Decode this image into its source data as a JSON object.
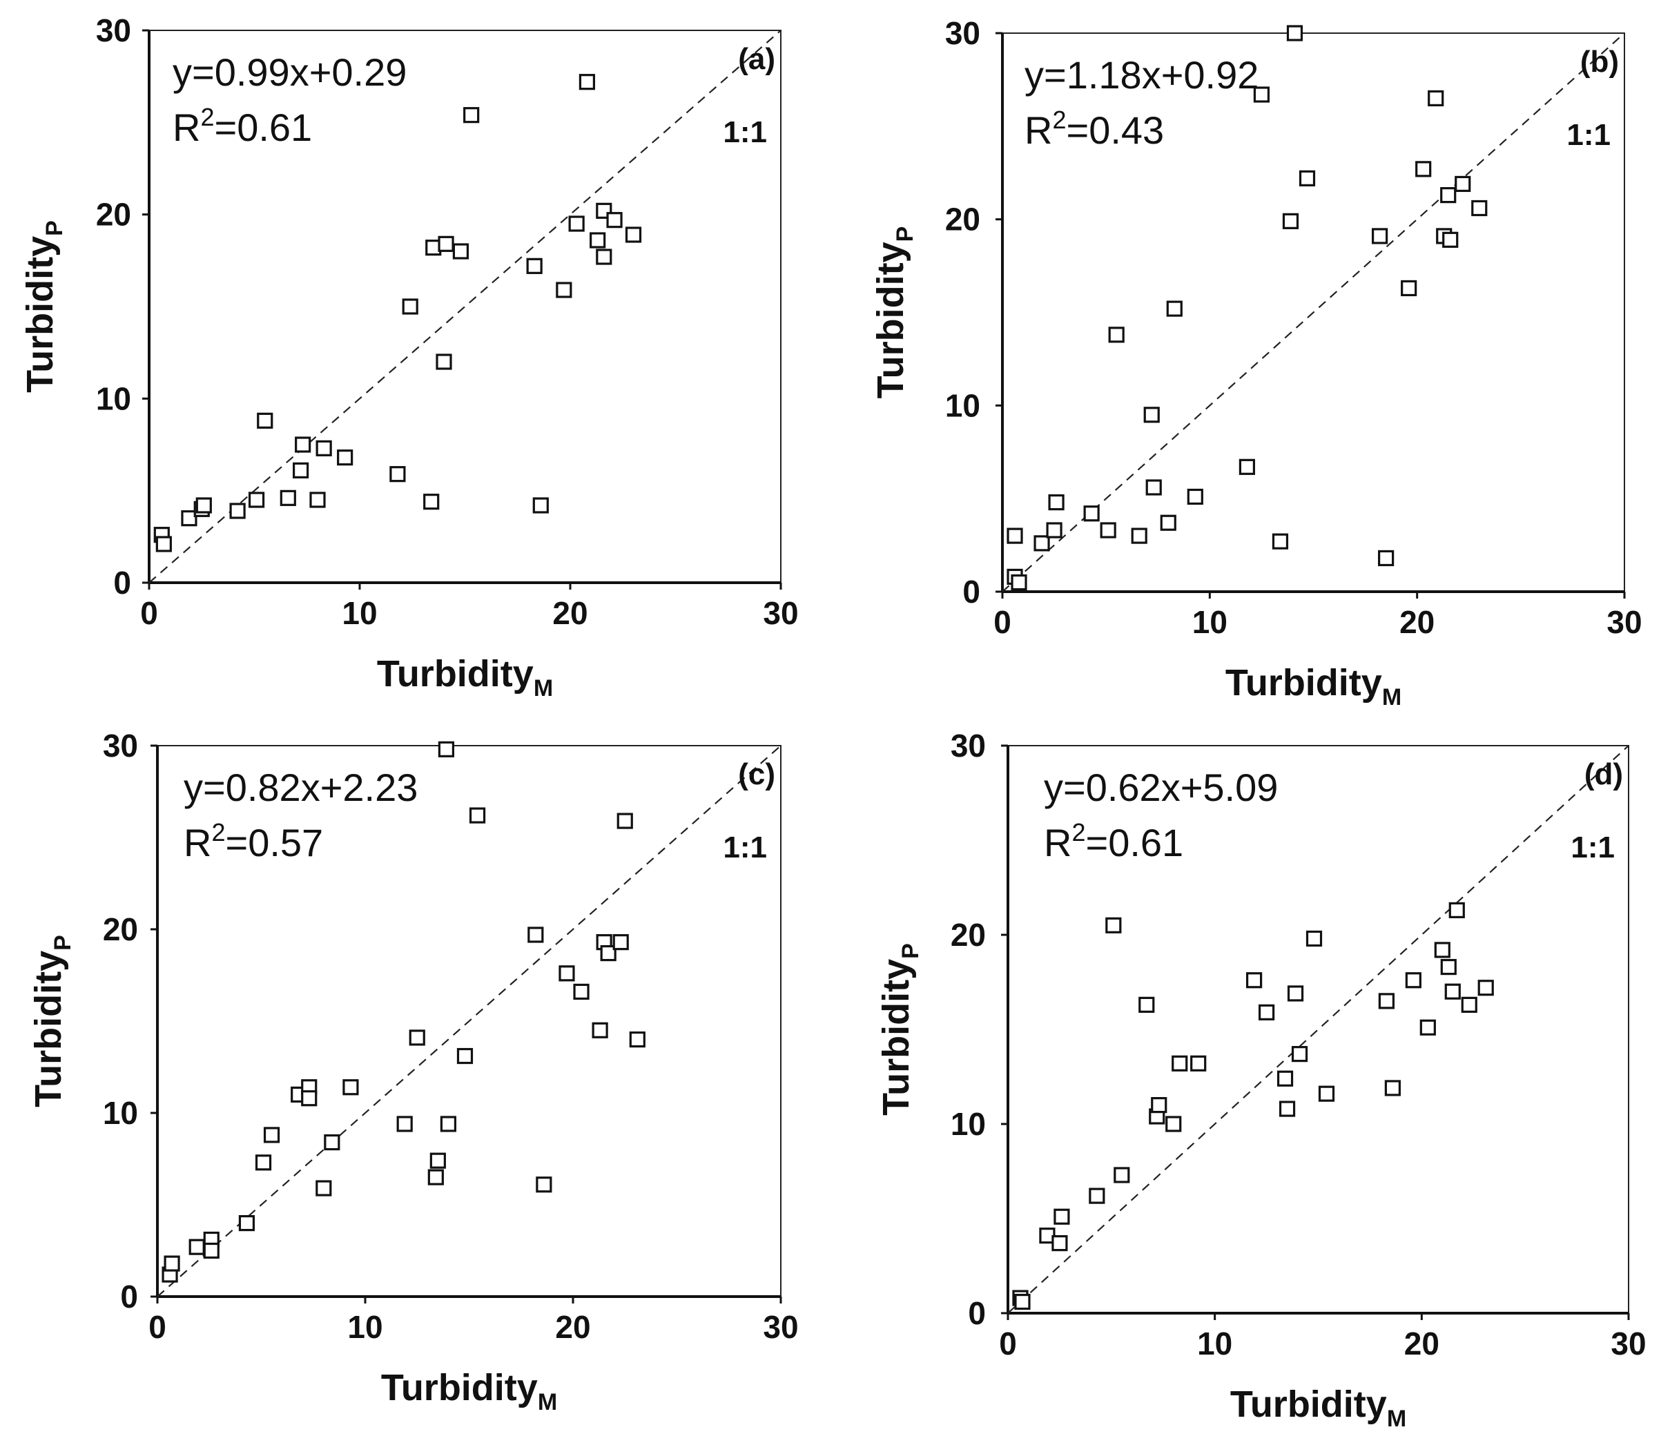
{
  "figure": {
    "colors": {
      "axis": "#111111",
      "marker_stroke": "#111111",
      "background": "#ffffff"
    }
  },
  "chart_data": [
    {
      "type": "scatter",
      "panel": "(a)",
      "equation": "y=0.99x+0.29",
      "r2_prefix": "R",
      "r2_sup": "2",
      "r2_value": "=0.61",
      "ref_line_label": "1:1",
      "xlabel": "Turbidity",
      "xlabel_sub": "M",
      "ylabel": "Turbidity",
      "ylabel_sub": "P",
      "xlim": [
        0,
        30
      ],
      "ylim": [
        0,
        30
      ],
      "xticks": [
        0,
        10,
        20,
        30
      ],
      "yticks": [
        0,
        10,
        20,
        30
      ],
      "marker": "open-square",
      "points": [
        [
          0.6,
          2.6
        ],
        [
          0.7,
          2.1
        ],
        [
          1.9,
          3.5
        ],
        [
          2.5,
          4.0
        ],
        [
          2.6,
          4.2
        ],
        [
          4.2,
          3.9
        ],
        [
          5.1,
          4.5
        ],
        [
          5.5,
          8.8
        ],
        [
          6.6,
          4.6
        ],
        [
          7.2,
          6.1
        ],
        [
          7.3,
          7.5
        ],
        [
          8.0,
          4.5
        ],
        [
          8.3,
          7.3
        ],
        [
          9.3,
          6.8
        ],
        [
          11.8,
          5.9
        ],
        [
          12.4,
          15.0
        ],
        [
          13.4,
          4.4
        ],
        [
          13.5,
          18.2
        ],
        [
          14.0,
          12.0
        ],
        [
          14.1,
          18.4
        ],
        [
          14.8,
          18.0
        ],
        [
          15.3,
          25.4
        ],
        [
          18.3,
          17.2
        ],
        [
          18.6,
          4.2
        ],
        [
          19.7,
          15.9
        ],
        [
          20.3,
          19.5
        ],
        [
          20.8,
          27.2
        ],
        [
          21.3,
          18.6
        ],
        [
          21.6,
          20.2
        ],
        [
          21.6,
          17.7
        ],
        [
          22.1,
          19.7
        ],
        [
          23.0,
          18.9
        ]
      ]
    },
    {
      "type": "scatter",
      "panel": "(b)",
      "equation": "y=1.18x+0.92",
      "r2_prefix": "R",
      "r2_sup": "2",
      "r2_value": "=0.43",
      "ref_line_label": "1:1",
      "xlabel": "Turbidity",
      "xlabel_sub": "M",
      "ylabel": "Turbidity",
      "ylabel_sub": "P",
      "xlim": [
        0,
        30
      ],
      "ylim": [
        0,
        30
      ],
      "xticks": [
        0,
        10,
        20,
        30
      ],
      "yticks": [
        0,
        10,
        20,
        30
      ],
      "marker": "open-square",
      "points": [
        [
          0.6,
          3.0
        ],
        [
          0.6,
          0.8
        ],
        [
          0.8,
          0.5
        ],
        [
          1.9,
          2.6
        ],
        [
          2.5,
          3.3
        ],
        [
          2.6,
          4.8
        ],
        [
          4.3,
          4.2
        ],
        [
          5.1,
          3.3
        ],
        [
          5.5,
          13.8
        ],
        [
          6.6,
          3.0
        ],
        [
          7.2,
          9.5
        ],
        [
          7.3,
          5.6
        ],
        [
          8.0,
          3.7
        ],
        [
          8.3,
          15.2
        ],
        [
          9.3,
          5.1
        ],
        [
          11.8,
          6.7
        ],
        [
          12.5,
          26.7
        ],
        [
          13.4,
          2.7
        ],
        [
          13.9,
          19.9
        ],
        [
          14.1,
          30.0
        ],
        [
          14.7,
          22.2
        ],
        [
          18.2,
          19.1
        ],
        [
          18.5,
          1.8
        ],
        [
          19.6,
          16.3
        ],
        [
          20.3,
          22.7
        ],
        [
          20.9,
          26.5
        ],
        [
          21.3,
          19.1
        ],
        [
          21.5,
          21.3
        ],
        [
          21.6,
          18.9
        ],
        [
          22.2,
          21.9
        ],
        [
          23.0,
          20.6
        ]
      ]
    },
    {
      "type": "scatter",
      "panel": "(c)",
      "equation": "y=0.82x+2.23",
      "r2_prefix": "R",
      "r2_sup": "2",
      "r2_value": "=0.57",
      "ref_line_label": "1:1",
      "xlabel": "Turbidity",
      "xlabel_sub": "M",
      "ylabel": "Turbidity",
      "ylabel_sub": "P",
      "xlim": [
        0,
        30
      ],
      "ylim": [
        0,
        30
      ],
      "xticks": [
        0,
        10,
        20,
        30
      ],
      "yticks": [
        0,
        10,
        20,
        30
      ],
      "marker": "open-square",
      "points": [
        [
          0.6,
          1.2
        ],
        [
          0.7,
          1.8
        ],
        [
          1.9,
          2.7
        ],
        [
          2.6,
          3.1
        ],
        [
          2.6,
          2.5
        ],
        [
          4.3,
          4.0
        ],
        [
          5.1,
          7.3
        ],
        [
          5.5,
          8.8
        ],
        [
          6.8,
          11.0
        ],
        [
          7.3,
          11.4
        ],
        [
          7.3,
          10.8
        ],
        [
          8.0,
          5.9
        ],
        [
          8.4,
          8.4
        ],
        [
          9.3,
          11.4
        ],
        [
          11.9,
          9.4
        ],
        [
          12.5,
          14.1
        ],
        [
          13.4,
          6.5
        ],
        [
          13.5,
          7.4
        ],
        [
          13.9,
          29.8
        ],
        [
          14.0,
          9.4
        ],
        [
          14.8,
          13.1
        ],
        [
          15.4,
          26.2
        ],
        [
          18.2,
          19.7
        ],
        [
          18.6,
          6.1
        ],
        [
          19.7,
          17.6
        ],
        [
          20.4,
          16.6
        ],
        [
          21.3,
          14.5
        ],
        [
          21.5,
          19.3
        ],
        [
          21.7,
          18.7
        ],
        [
          22.3,
          19.3
        ],
        [
          22.5,
          25.9
        ],
        [
          23.1,
          14.0
        ]
      ]
    },
    {
      "type": "scatter",
      "panel": "(d)",
      "equation": "y=0.62x+5.09",
      "r2_prefix": "R",
      "r2_sup": "2",
      "r2_value": "=0.61",
      "ref_line_label": "1:1",
      "xlabel": "Turbidity",
      "xlabel_sub": "M",
      "ylabel": "Turbidity",
      "ylabel_sub": "P",
      "xlim": [
        0,
        30
      ],
      "ylim": [
        0,
        30
      ],
      "xticks": [
        0,
        10,
        20,
        30
      ],
      "yticks": [
        0,
        10,
        20,
        30
      ],
      "marker": "open-square",
      "points": [
        [
          0.6,
          0.8
        ],
        [
          0.7,
          0.6
        ],
        [
          1.9,
          4.1
        ],
        [
          2.5,
          3.7
        ],
        [
          2.6,
          5.1
        ],
        [
          4.3,
          6.2
        ],
        [
          5.1,
          20.5
        ],
        [
          5.5,
          7.3
        ],
        [
          6.7,
          16.3
        ],
        [
          7.2,
          10.4
        ],
        [
          7.3,
          11.0
        ],
        [
          8.0,
          10.0
        ],
        [
          8.3,
          13.2
        ],
        [
          9.2,
          13.2
        ],
        [
          11.9,
          17.6
        ],
        [
          12.5,
          15.9
        ],
        [
          13.4,
          12.4
        ],
        [
          13.5,
          10.8
        ],
        [
          13.9,
          16.9
        ],
        [
          14.1,
          13.7
        ],
        [
          14.8,
          19.8
        ],
        [
          15.4,
          11.6
        ],
        [
          18.3,
          16.5
        ],
        [
          18.6,
          11.9
        ],
        [
          19.6,
          17.6
        ],
        [
          20.3,
          15.1
        ],
        [
          21.0,
          19.2
        ],
        [
          21.3,
          18.3
        ],
        [
          21.5,
          17.0
        ],
        [
          21.7,
          21.3
        ],
        [
          22.3,
          16.3
        ],
        [
          23.1,
          17.2
        ]
      ]
    }
  ]
}
